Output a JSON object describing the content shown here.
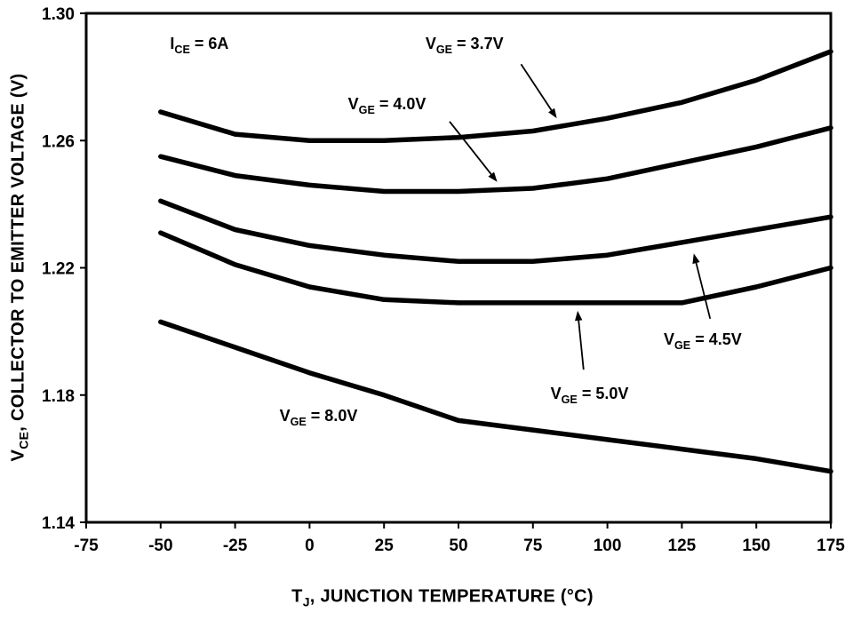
{
  "figure": {
    "background": "#ffffff",
    "line_color": "#000000"
  },
  "chart_data": {
    "type": "line",
    "title": "",
    "xlabel": {
      "main": "T",
      "sub": "J",
      "rest": ", JUNCTION TEMPERATURE (°C)"
    },
    "ylabel": {
      "main": "V",
      "sub": "CE",
      "rest": ",  COLLECTOR TO EMITTER VOLTAGE (V)"
    },
    "xlim": [
      -75,
      175
    ],
    "ylim": [
      1.14,
      1.3
    ],
    "grid": false,
    "legend": "none (labels annotated on plot)",
    "x_ticks": [
      {
        "value": -75,
        "label": "-75"
      },
      {
        "value": -50,
        "label": "-50"
      },
      {
        "value": -25,
        "label": "-25"
      },
      {
        "value": 0,
        "label": "0"
      },
      {
        "value": 25,
        "label": "25"
      },
      {
        "value": 50,
        "label": "50"
      },
      {
        "value": 75,
        "label": "75"
      },
      {
        "value": 100,
        "label": "100"
      },
      {
        "value": 125,
        "label": "125"
      },
      {
        "value": 150,
        "label": "150"
      },
      {
        "value": 175,
        "label": "175"
      }
    ],
    "y_ticks": [
      {
        "value": 1.3,
        "label": "1.30"
      },
      {
        "value": 1.26,
        "label": "1.26"
      },
      {
        "value": 1.22,
        "label": "1.22"
      },
      {
        "value": 1.18,
        "label": "1.18"
      },
      {
        "value": 1.14,
        "label": "1.14"
      }
    ],
    "x": [
      -50,
      -25,
      0,
      25,
      50,
      75,
      100,
      125,
      150,
      175
    ],
    "series": [
      {
        "name": "VGE = 3.7V",
        "values": [
          1.269,
          1.262,
          1.26,
          1.26,
          1.261,
          1.263,
          1.267,
          1.272,
          1.279,
          1.288
        ]
      },
      {
        "name": "VGE = 4.0V",
        "values": [
          1.255,
          1.249,
          1.246,
          1.244,
          1.244,
          1.245,
          1.248,
          1.253,
          1.258,
          1.264
        ]
      },
      {
        "name": "VGE = 4.5V",
        "values": [
          1.241,
          1.232,
          1.227,
          1.224,
          1.222,
          1.222,
          1.224,
          1.228,
          1.232,
          1.236
        ]
      },
      {
        "name": "VGE = 5.0V",
        "values": [
          1.231,
          1.221,
          1.214,
          1.21,
          1.209,
          1.209,
          1.209,
          1.209,
          1.214,
          1.22
        ]
      },
      {
        "name": "VGE = 8.0V",
        "values": [
          1.203,
          1.195,
          1.187,
          1.18,
          1.172,
          1.169,
          1.166,
          1.163,
          1.16,
          1.156
        ]
      }
    ],
    "annotations": [
      {
        "id": "ice-6a",
        "main": "I",
        "sub": "CE",
        "rest": " = 6A",
        "x": -37,
        "y": 1.29,
        "arrow": null
      },
      {
        "id": "vge-3p7",
        "main": "V",
        "sub": "GE",
        "rest": " = 3.7V",
        "x": 52,
        "y": 1.29,
        "arrow": {
          "x1": 71,
          "y1": 1.284,
          "x2": 83,
          "y2": 1.267
        }
      },
      {
        "id": "vge-4p0",
        "main": "V",
        "sub": "GE",
        "rest": " = 4.0V",
        "x": 26,
        "y": 1.271,
        "arrow": {
          "x1": 47,
          "y1": 1.266,
          "x2": 63,
          "y2": 1.247
        }
      },
      {
        "id": "vge-4p5",
        "main": "V",
        "sub": "GE",
        "rest": " = 4.5V",
        "x": 132,
        "y": 1.197,
        "arrow": {
          "x1": 134.5,
          "y1": 1.204,
          "x2": 129,
          "y2": 1.2245
        }
      },
      {
        "id": "vge-5p0",
        "main": "V",
        "sub": "GE",
        "rest": " = 5.0V",
        "x": 94,
        "y": 1.18,
        "arrow": {
          "x1": 92,
          "y1": 1.188,
          "x2": 90,
          "y2": 1.2065
        }
      },
      {
        "id": "vge-8p0",
        "main": "V",
        "sub": "GE",
        "rest": " = 8.0V",
        "x": 3,
        "y": 1.173,
        "arrow": null
      }
    ]
  }
}
